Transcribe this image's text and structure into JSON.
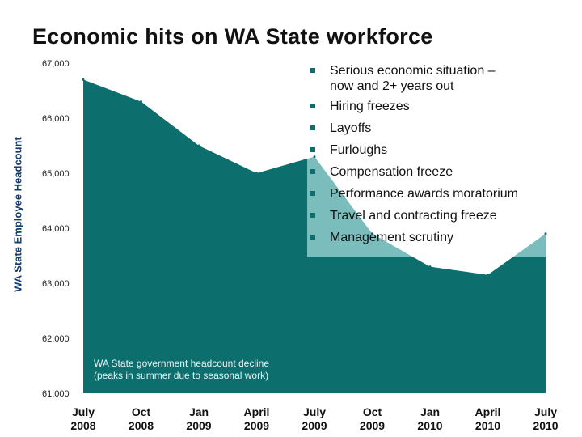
{
  "title": "Economic hits on WA State workforce",
  "chart_data": {
    "type": "area",
    "title": "Economic hits on WA State workforce",
    "xlabel": "",
    "ylabel": "WA State Employee Headcount",
    "categories": [
      "July 2008",
      "Oct 2008",
      "Jan 2009",
      "April 2009",
      "July 2009",
      "Oct 2009",
      "Jan 2010",
      "April 2010",
      "July 2010"
    ],
    "series": [
      {
        "values": [
          66700,
          66300,
          65500,
          65000,
          65300,
          63900,
          63300,
          63150,
          63900
        ]
      }
    ],
    "ylim": [
      61000,
      67000
    ],
    "yticks": [
      61000,
      62000,
      63000,
      64000,
      65000,
      66000,
      67000
    ],
    "ytick_labels": [
      "61,000",
      "62,000",
      "63,000",
      "64,000",
      "65,000",
      "66,000",
      "67,000"
    ],
    "xtick_labels": [
      [
        "July",
        "2008"
      ],
      [
        "Oct",
        "2008"
      ],
      [
        "Jan",
        "2009"
      ],
      [
        "April",
        "2009"
      ],
      [
        "July",
        "2009"
      ],
      [
        "Oct",
        "2009"
      ],
      [
        "Jan",
        "2010"
      ],
      [
        "April",
        "2010"
      ],
      [
        "July",
        "2010"
      ]
    ],
    "grid": false,
    "annotation": [
      "WA State government headcount decline",
      "(peaks in summer due to seasonal work)"
    ],
    "colors": {
      "area_fill": "#0d6e6e",
      "area_highlight": "#7bbcbc",
      "bullet": "#0d6e6e"
    }
  },
  "bullets": [
    [
      "Serious economic situation –",
      "now and 2+ years out"
    ],
    [
      "Hiring freezes"
    ],
    [
      "Layoffs"
    ],
    [
      "Furloughs"
    ],
    [
      "Compensation freeze"
    ],
    [
      "Performance awards moratorium"
    ],
    [
      "Travel and contracting freeze"
    ],
    [
      "Management scrutiny"
    ]
  ]
}
